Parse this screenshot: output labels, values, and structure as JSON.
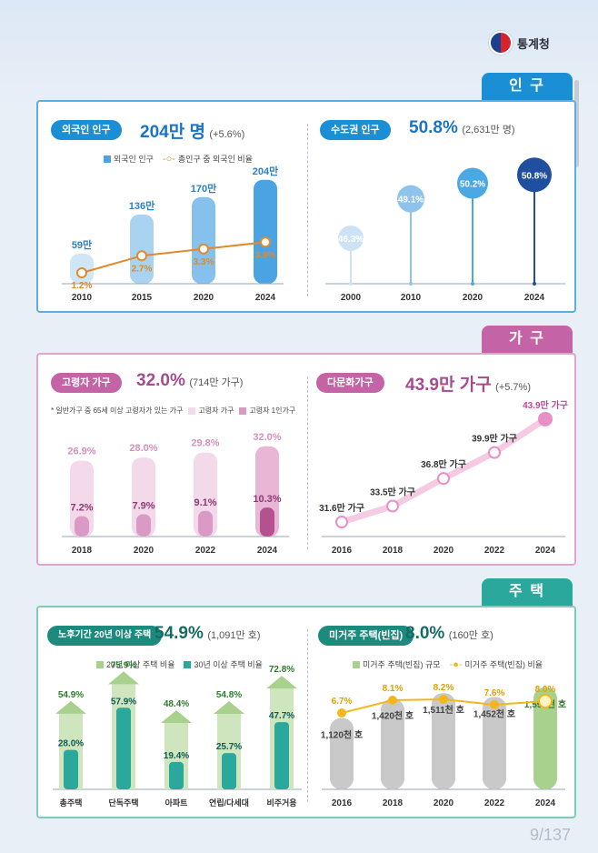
{
  "header": {
    "org_name": "통계청",
    "page_number": "9/137"
  },
  "sections": {
    "population": {
      "tab": "인 구",
      "color": "#1a8fd6"
    },
    "household": {
      "tab": "가 구",
      "color": "#c463a6"
    },
    "housing": {
      "tab": "주 택",
      "color": "#2aa89b"
    }
  },
  "foreign": {
    "pill": "외국인 인구",
    "headline_value": "204만 명",
    "headline_sub": "(+5.6%)",
    "legend_bar": "외국인 인구",
    "legend_line": "총인구 중 외국인 비율",
    "bar_color": "#4aa3e2",
    "line_color": "#e08a2c"
  },
  "metro": {
    "pill": "수도권 인구",
    "headline_value": "50.8%",
    "headline_sub": "(2,631만 명)",
    "color": "#3a8fd6"
  },
  "elderly": {
    "pill": "고령자 가구",
    "headline_value": "32.0%",
    "headline_sub": "(714만 가구)",
    "note": "* 일반가구 중 65세 이상 고령자가 있는 가구",
    "legend_a": "고령자 가구",
    "legend_b": "고령자 1인가구",
    "color_a": "#f4d9ea",
    "color_b": "#d99bc6",
    "label_color": "#c463a6"
  },
  "multicultural": {
    "pill": "다문화가구",
    "headline_value": "43.9만 가구",
    "headline_sub": "(+5.7%)",
    "color": "#e88fc5"
  },
  "old_housing": {
    "pill": "노후기간 20년 이상 주택",
    "headline_value": "54.9%",
    "headline_sub": "(1,091만 호)",
    "legend_a": "20년 이상 주택 비율",
    "legend_b": "30년 이상 주택 비율",
    "color_a": "#a9d18e",
    "color_b": "#2aa89b"
  },
  "vacant": {
    "pill": "미거주 주택(빈집)",
    "headline_value": "8.0%",
    "headline_sub": "(160만 호)",
    "legend_bar": "미거주 주택(빈집) 규모",
    "legend_line": "미거주 주택(빈집) 비율",
    "bar_color": "#c9c9c9",
    "last_bar_color": "#a9d18e",
    "line_color": "#f3b71d"
  },
  "chart_data": [
    {
      "type": "bar",
      "categories": [
        "2010",
        "2015",
        "2020",
        "2024"
      ],
      "series": [
        {
          "name": "외국인 인구",
          "values": [
            59,
            136,
            170,
            204
          ],
          "labels": [
            "59만",
            "136만",
            "170만",
            "204만"
          ]
        },
        {
          "name": "총인구 중 외국인 비율",
          "values": [
            1.2,
            2.7,
            3.3,
            3.9
          ],
          "labels": [
            "1.2%",
            "2.7%",
            "3.3%",
            "3.9%"
          ]
        }
      ]
    },
    {
      "type": "scatter",
      "categories": [
        "2000",
        "2010",
        "2020",
        "2024"
      ],
      "values": [
        46.3,
        49.1,
        50.2,
        50.8
      ],
      "labels": [
        "46.3%",
        "49.1%",
        "50.2%",
        "50.8%"
      ]
    },
    {
      "type": "bar",
      "categories": [
        "2018",
        "2020",
        "2022",
        "2024"
      ],
      "series": [
        {
          "name": "고령자 가구",
          "values": [
            26.9,
            28.0,
            29.8,
            32.0
          ],
          "labels": [
            "26.9%",
            "28.0%",
            "29.8%",
            "32.0%"
          ]
        },
        {
          "name": "고령자 1인가구",
          "values": [
            7.2,
            7.9,
            9.1,
            10.3
          ],
          "labels": [
            "7.2%",
            "7.9%",
            "9.1%",
            "10.3%"
          ]
        }
      ]
    },
    {
      "type": "line",
      "categories": [
        "2016",
        "2018",
        "2020",
        "2022",
        "2024"
      ],
      "values": [
        31.6,
        33.5,
        36.8,
        39.9,
        43.9
      ],
      "labels": [
        "31.6만 가구",
        "33.5만 가구",
        "36.8만 가구",
        "39.9만 가구",
        "43.9만 가구"
      ]
    },
    {
      "type": "bar",
      "categories": [
        "총주택",
        "단독주택",
        "아파트",
        "연립/다세대",
        "비주거용"
      ],
      "series": [
        {
          "name": "20년 이상 주택 비율",
          "values": [
            54.9,
            75.9,
            48.4,
            54.8,
            72.8
          ],
          "labels": [
            "54.9%",
            "75.9%",
            "48.4%",
            "54.8%",
            "72.8%"
          ]
        },
        {
          "name": "30년 이상 주택 비율",
          "values": [
            28.0,
            57.9,
            19.4,
            25.7,
            47.7
          ],
          "labels": [
            "28.0%",
            "57.9%",
            "19.4%",
            "25.7%",
            "47.7%"
          ]
        }
      ]
    },
    {
      "type": "bar",
      "categories": [
        "2016",
        "2018",
        "2020",
        "2022",
        "2024"
      ],
      "series": [
        {
          "name": "미거주 주택(빈집) 규모",
          "values": [
            1120,
            1420,
            1511,
            1452,
            1599
          ],
          "labels": [
            "1,120천 호",
            "1,420천 호",
            "1,511천 호",
            "1,452천 호",
            "1,599천 호"
          ]
        },
        {
          "name": "미거주 주택(빈집) 비율",
          "values": [
            6.7,
            8.1,
            8.2,
            7.6,
            8.0
          ],
          "labels": [
            "6.7%",
            "8.1%",
            "8.2%",
            "7.6%",
            "8.0%"
          ]
        }
      ]
    }
  ]
}
